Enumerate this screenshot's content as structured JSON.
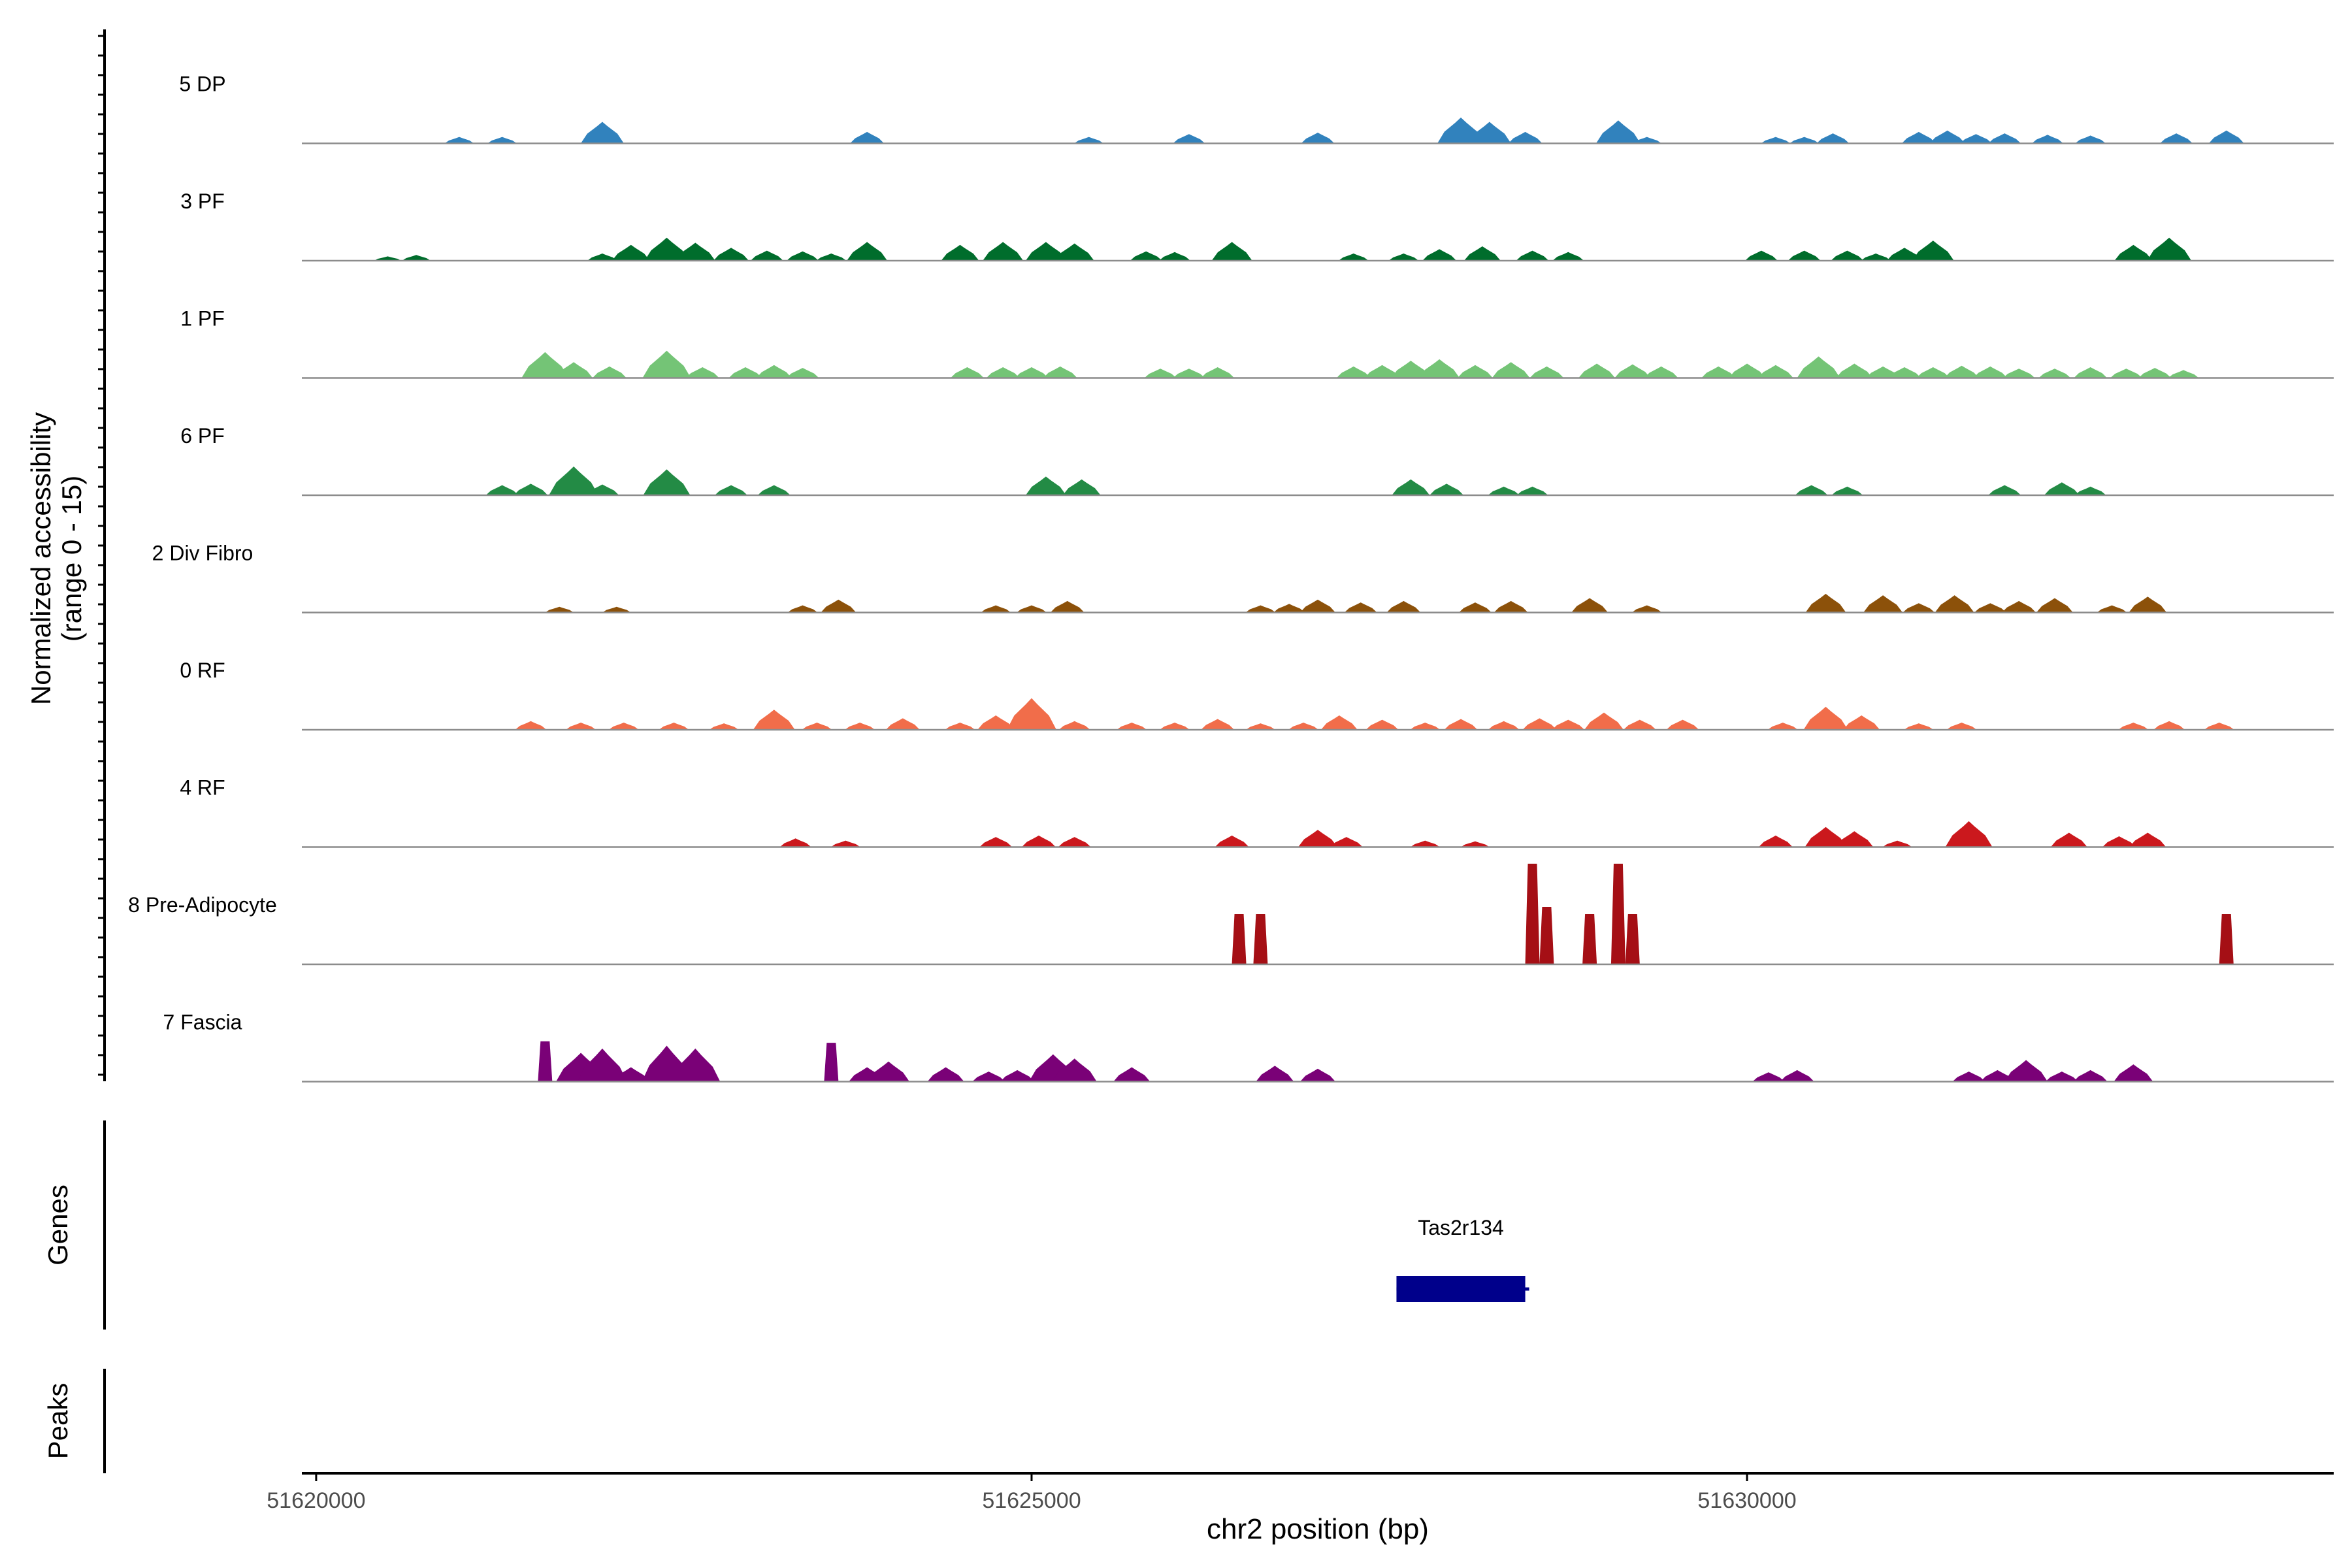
{
  "chart_data": {
    "type": "area",
    "title": "",
    "ylabel_line1": "Normalized accessibility",
    "ylabel_line2": "(range 0 - 15)",
    "xlabel": "chr2 position (bp)",
    "xlim": [
      51619900,
      51634100
    ],
    "ylim": [
      0,
      15
    ],
    "x_ticks": [
      51620000,
      51625000,
      51630000
    ],
    "x_tick_labels": [
      "51620000",
      "51625000",
      "51630000"
    ],
    "genes_label": "Genes",
    "peaks_label": "Peaks",
    "genes": [
      {
        "name": "Tas2r134",
        "start": 51627550,
        "end": 51628450,
        "color": "#00008B"
      }
    ],
    "tracks": [
      {
        "name": "5 DP",
        "color": "#3182BD",
        "peaks": [
          [
            51621000,
            0.9
          ],
          [
            51621300,
            0.9
          ],
          [
            51622000,
            3.0
          ],
          [
            51623850,
            1.6
          ],
          [
            51625400,
            0.9
          ],
          [
            51626100,
            1.3
          ],
          [
            51627000,
            1.5
          ],
          [
            51628000,
            3.6
          ],
          [
            51628200,
            3.0
          ],
          [
            51628450,
            1.6
          ],
          [
            51629100,
            3.2
          ],
          [
            51629300,
            0.9
          ],
          [
            51630200,
            0.9
          ],
          [
            51630400,
            0.9
          ],
          [
            51630600,
            1.4
          ],
          [
            51631200,
            1.6
          ],
          [
            51631400,
            1.8
          ],
          [
            51631600,
            1.3
          ],
          [
            51631800,
            1.4
          ],
          [
            51632100,
            1.2
          ],
          [
            51632400,
            1.1
          ],
          [
            51633000,
            1.4
          ],
          [
            51633350,
            1.8
          ]
        ]
      },
      {
        "name": "3 PF",
        "color": "#006D2C",
        "peaks": [
          [
            51620500,
            0.6
          ],
          [
            51620700,
            0.8
          ],
          [
            51622000,
            1.0
          ],
          [
            51622200,
            2.2
          ],
          [
            51622450,
            3.2
          ],
          [
            51622650,
            2.5
          ],
          [
            51622900,
            1.8
          ],
          [
            51623150,
            1.4
          ],
          [
            51623400,
            1.3
          ],
          [
            51623600,
            1.0
          ],
          [
            51623850,
            2.6
          ],
          [
            51624500,
            2.2
          ],
          [
            51624800,
            2.6
          ],
          [
            51625100,
            2.6
          ],
          [
            51625300,
            2.4
          ],
          [
            51625800,
            1.3
          ],
          [
            51626000,
            1.2
          ],
          [
            51626400,
            2.6
          ],
          [
            51627250,
            1.0
          ],
          [
            51627600,
            1.0
          ],
          [
            51627850,
            1.6
          ],
          [
            51628150,
            2.0
          ],
          [
            51628500,
            1.4
          ],
          [
            51628750,
            1.2
          ],
          [
            51630100,
            1.4
          ],
          [
            51630400,
            1.4
          ],
          [
            51630700,
            1.4
          ],
          [
            51630900,
            1.0
          ],
          [
            51631100,
            1.8
          ],
          [
            51631300,
            2.8
          ],
          [
            51632700,
            2.2
          ],
          [
            51632950,
            3.2
          ]
        ]
      },
      {
        "name": "1 PF",
        "color": "#74C476",
        "peaks": [
          [
            51621600,
            3.6
          ],
          [
            51621800,
            2.2
          ],
          [
            51622050,
            1.6
          ],
          [
            51622450,
            3.8
          ],
          [
            51622700,
            1.5
          ],
          [
            51623000,
            1.5
          ],
          [
            51623200,
            1.8
          ],
          [
            51623400,
            1.4
          ],
          [
            51624550,
            1.5
          ],
          [
            51624800,
            1.5
          ],
          [
            51625000,
            1.5
          ],
          [
            51625200,
            1.6
          ],
          [
            51625900,
            1.3
          ],
          [
            51626100,
            1.3
          ],
          [
            51626300,
            1.5
          ],
          [
            51627250,
            1.6
          ],
          [
            51627450,
            1.8
          ],
          [
            51627650,
            2.4
          ],
          [
            51627850,
            2.6
          ],
          [
            51628100,
            1.8
          ],
          [
            51628350,
            2.2
          ],
          [
            51628600,
            1.6
          ],
          [
            51628950,
            2.0
          ],
          [
            51629200,
            1.9
          ],
          [
            51629400,
            1.6
          ],
          [
            51629800,
            1.6
          ],
          [
            51630000,
            2.0
          ],
          [
            51630200,
            1.8
          ],
          [
            51630500,
            3.0
          ],
          [
            51630750,
            2.0
          ],
          [
            51630950,
            1.6
          ],
          [
            51631100,
            1.5
          ],
          [
            51631300,
            1.5
          ],
          [
            51631500,
            1.7
          ],
          [
            51631700,
            1.6
          ],
          [
            51631900,
            1.3
          ],
          [
            51632150,
            1.3
          ],
          [
            51632400,
            1.5
          ],
          [
            51632650,
            1.3
          ],
          [
            51632850,
            1.4
          ],
          [
            51633050,
            1.1
          ]
        ]
      },
      {
        "name": "6 PF",
        "color": "#238B45",
        "peaks": [
          [
            51621300,
            1.4
          ],
          [
            51621500,
            1.6
          ],
          [
            51621800,
            4.0
          ],
          [
            51622000,
            1.5
          ],
          [
            51622450,
            3.6
          ],
          [
            51622900,
            1.4
          ],
          [
            51623200,
            1.4
          ],
          [
            51625100,
            2.6
          ],
          [
            51625350,
            2.2
          ],
          [
            51627650,
            2.2
          ],
          [
            51627900,
            1.6
          ],
          [
            51628300,
            1.2
          ],
          [
            51628500,
            1.2
          ],
          [
            51630450,
            1.4
          ],
          [
            51630700,
            1.2
          ],
          [
            51631800,
            1.4
          ],
          [
            51632200,
            1.8
          ],
          [
            51632400,
            1.2
          ]
        ]
      },
      {
        "name": "2 Div Fibro",
        "color": "#8C510A",
        "peaks": [
          [
            51621700,
            0.8
          ],
          [
            51622100,
            0.8
          ],
          [
            51623400,
            1.0
          ],
          [
            51623650,
            1.8
          ],
          [
            51624750,
            1.0
          ],
          [
            51625000,
            1.0
          ],
          [
            51625250,
            1.6
          ],
          [
            51626600,
            1.0
          ],
          [
            51626800,
            1.2
          ],
          [
            51627000,
            1.8
          ],
          [
            51627300,
            1.4
          ],
          [
            51627600,
            1.6
          ],
          [
            51628100,
            1.4
          ],
          [
            51628350,
            1.6
          ],
          [
            51628900,
            2.0
          ],
          [
            51629300,
            1.0
          ],
          [
            51630550,
            2.6
          ],
          [
            51630950,
            2.4
          ],
          [
            51631200,
            1.3
          ],
          [
            51631450,
            2.4
          ],
          [
            51631700,
            1.3
          ],
          [
            51631900,
            1.6
          ],
          [
            51632150,
            2.0
          ],
          [
            51632550,
            1.0
          ],
          [
            51632800,
            2.2
          ]
        ]
      },
      {
        "name": "0 RF",
        "color": "#F16D4A",
        "peaks": [
          [
            51621500,
            1.2
          ],
          [
            51621850,
            1.0
          ],
          [
            51622150,
            1.0
          ],
          [
            51622500,
            1.0
          ],
          [
            51622850,
            0.9
          ],
          [
            51623200,
            2.8
          ],
          [
            51623500,
            1.0
          ],
          [
            51623800,
            1.0
          ],
          [
            51624100,
            1.6
          ],
          [
            51624500,
            1.0
          ],
          [
            51624750,
            2.0
          ],
          [
            51625000,
            4.4
          ],
          [
            51625300,
            1.2
          ],
          [
            51625700,
            1.0
          ],
          [
            51626000,
            1.0
          ],
          [
            51626300,
            1.5
          ],
          [
            51626600,
            0.9
          ],
          [
            51626900,
            1.0
          ],
          [
            51627150,
            2.0
          ],
          [
            51627450,
            1.4
          ],
          [
            51627750,
            1.0
          ],
          [
            51628000,
            1.5
          ],
          [
            51628300,
            1.2
          ],
          [
            51628550,
            1.6
          ],
          [
            51628750,
            1.4
          ],
          [
            51629000,
            2.4
          ],
          [
            51629250,
            1.4
          ],
          [
            51629550,
            1.4
          ],
          [
            51630250,
            1.0
          ],
          [
            51630550,
            3.2
          ],
          [
            51630800,
            2.0
          ],
          [
            51631200,
            0.9
          ],
          [
            51631500,
            1.0
          ],
          [
            51632700,
            1.0
          ],
          [
            51632950,
            1.2
          ],
          [
            51633300,
            1.0
          ]
        ]
      },
      {
        "name": "4 RF",
        "color": "#CB181D",
        "peaks": [
          [
            51623350,
            1.2
          ],
          [
            51623700,
            0.9
          ],
          [
            51624750,
            1.4
          ],
          [
            51625050,
            1.6
          ],
          [
            51625300,
            1.4
          ],
          [
            51626400,
            1.6
          ],
          [
            51627000,
            2.4
          ],
          [
            51627200,
            1.4
          ],
          [
            51627750,
            0.9
          ],
          [
            51628100,
            0.8
          ],
          [
            51630200,
            1.6
          ],
          [
            51630550,
            2.8
          ],
          [
            51630750,
            2.2
          ],
          [
            51631050,
            0.9
          ],
          [
            51631550,
            3.6
          ],
          [
            51632250,
            2.0
          ],
          [
            51632600,
            1.5
          ],
          [
            51632800,
            2.0
          ]
        ]
      },
      {
        "name": "8 Pre-Adipocyte",
        "color": "#A50F15",
        "peaks": [
          [
            51626450,
            7.0
          ],
          [
            51626600,
            7.0
          ],
          [
            51628500,
            14.0
          ],
          [
            51628600,
            8.0
          ],
          [
            51628900,
            7.0
          ],
          [
            51629100,
            14.0
          ],
          [
            51629200,
            7.0
          ],
          [
            51633350,
            7.0
          ]
        ]
      },
      {
        "name": "7 Fascia",
        "color": "#7A0177",
        "peaks": [
          [
            51621600,
            5.6
          ],
          [
            51621850,
            4.0
          ],
          [
            51622000,
            4.6
          ],
          [
            51622200,
            2.0
          ],
          [
            51622450,
            5.0
          ],
          [
            51622650,
            4.6
          ],
          [
            51623600,
            5.4
          ],
          [
            51623850,
            2.0
          ],
          [
            51624000,
            2.8
          ],
          [
            51624400,
            2.0
          ],
          [
            51624700,
            1.4
          ],
          [
            51624900,
            1.6
          ],
          [
            51625150,
            3.8
          ],
          [
            51625300,
            3.2
          ],
          [
            51625700,
            2.0
          ],
          [
            51626700,
            2.2
          ],
          [
            51627000,
            1.8
          ],
          [
            51630150,
            1.3
          ],
          [
            51630350,
            1.6
          ],
          [
            51631550,
            1.4
          ],
          [
            51631750,
            1.6
          ],
          [
            51631950,
            3.0
          ],
          [
            51632200,
            1.4
          ],
          [
            51632400,
            1.6
          ],
          [
            51632700,
            2.4
          ]
        ]
      }
    ]
  }
}
